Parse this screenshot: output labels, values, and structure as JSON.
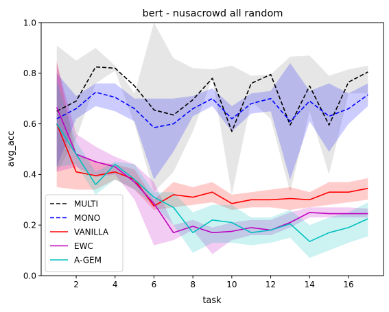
{
  "chart_data": {
    "type": "line",
    "title": "bert - nusacrowd all random",
    "xlabel": "task",
    "ylabel": "avg_acc",
    "xlim": [
      0.2,
      17.8
    ],
    "ylim": [
      0.0,
      1.0
    ],
    "xticks": [
      2,
      4,
      6,
      8,
      10,
      12,
      14,
      16
    ],
    "xtick_labels": [
      "2",
      "4",
      "6",
      "8",
      "10",
      "12",
      "14",
      "16"
    ],
    "yticks": [
      0.0,
      0.2,
      0.4,
      0.6,
      0.8,
      1.0
    ],
    "ytick_labels": [
      "0.0",
      "0.2",
      "0.4",
      "0.6",
      "0.8",
      "1.0"
    ],
    "grid": false,
    "legend_position": "lower-left",
    "x": [
      1,
      2,
      3,
      4,
      5,
      6,
      7,
      8,
      9,
      10,
      11,
      12,
      13,
      14,
      15,
      16,
      17
    ],
    "series": [
      {
        "name": "MULTI",
        "color": "#000000",
        "dash": "dashed",
        "band_color": "#808080",
        "values": [
          0.65,
          0.69,
          0.825,
          0.82,
          0.75,
          0.655,
          0.635,
          0.695,
          0.78,
          0.57,
          0.76,
          0.795,
          0.595,
          0.75,
          0.595,
          0.765,
          0.805
        ],
        "lower": [
          0.41,
          0.54,
          0.76,
          0.81,
          0.6,
          0.33,
          0.41,
          0.57,
          0.78,
          0.32,
          0.69,
          0.62,
          0.33,
          0.65,
          0.4,
          0.72,
          0.72
        ],
        "upper": [
          0.91,
          0.85,
          0.9,
          0.83,
          0.72,
          1.0,
          0.86,
          0.82,
          0.815,
          0.83,
          0.79,
          0.795,
          0.865,
          0.87,
          0.79,
          0.815,
          0.83
        ]
      },
      {
        "name": "MONO",
        "color": "#0000ff",
        "dash": "dashed",
        "band_color": "#0000ff",
        "values": [
          0.62,
          0.66,
          0.725,
          0.705,
          0.66,
          0.585,
          0.6,
          0.66,
          0.7,
          0.62,
          0.68,
          0.7,
          0.61,
          0.69,
          0.63,
          0.66,
          0.715
        ],
        "lower": [
          0.43,
          0.62,
          0.67,
          0.65,
          0.61,
          0.38,
          0.49,
          0.63,
          0.67,
          0.57,
          0.64,
          0.65,
          0.38,
          0.61,
          0.49,
          0.6,
          0.67
        ],
        "upper": [
          0.8,
          0.71,
          0.76,
          0.76,
          0.7,
          0.7,
          0.7,
          0.71,
          0.74,
          0.67,
          0.72,
          0.73,
          0.84,
          0.73,
          0.76,
          0.72,
          0.76
        ]
      },
      {
        "name": "VANILLA",
        "color": "#ff0000",
        "dash": "solid",
        "band_color": "#ff0000",
        "values": [
          0.6,
          0.41,
          0.395,
          0.41,
          0.38,
          0.275,
          0.32,
          0.31,
          0.33,
          0.285,
          0.3,
          0.3,
          0.305,
          0.3,
          0.33,
          0.33,
          0.345
        ],
        "lower": [
          0.35,
          0.34,
          0.34,
          0.38,
          0.34,
          0.26,
          0.27,
          0.28,
          0.29,
          0.26,
          0.27,
          0.27,
          0.26,
          0.27,
          0.28,
          0.29,
          0.3
        ],
        "upper": [
          0.85,
          0.48,
          0.45,
          0.44,
          0.42,
          0.3,
          0.37,
          0.35,
          0.37,
          0.32,
          0.33,
          0.34,
          0.35,
          0.33,
          0.37,
          0.37,
          0.385
        ]
      },
      {
        "name": "EWC",
        "color": "#bf00bf",
        "dash": "solid",
        "band_color": "#bf00bf",
        "values": [
          0.665,
          0.48,
          0.45,
          0.43,
          0.37,
          0.285,
          0.17,
          0.195,
          0.17,
          0.175,
          0.19,
          0.18,
          0.21,
          0.25,
          0.245,
          0.245,
          0.245
        ],
        "lower": [
          0.41,
          0.43,
          0.39,
          0.4,
          0.3,
          0.12,
          0.14,
          0.18,
          0.085,
          0.14,
          0.16,
          0.16,
          0.19,
          0.23,
          0.23,
          0.23,
          0.23
        ],
        "upper": [
          0.84,
          0.56,
          0.51,
          0.47,
          0.44,
          0.37,
          0.2,
          0.22,
          0.19,
          0.21,
          0.22,
          0.22,
          0.25,
          0.27,
          0.27,
          0.27,
          0.265
        ]
      },
      {
        "name": "A-GEM",
        "color": "#00bfbf",
        "dash": "solid",
        "band_color": "#00bfbf",
        "values": [
          0.6,
          0.48,
          0.36,
          0.44,
          0.38,
          0.31,
          0.27,
          0.17,
          0.22,
          0.21,
          0.17,
          0.18,
          0.205,
          0.135,
          0.17,
          0.19,
          0.225
        ],
        "lower": [
          0.43,
          0.44,
          0.32,
          0.38,
          0.34,
          0.28,
          0.2,
          0.09,
          0.13,
          0.13,
          0.12,
          0.13,
          0.15,
          0.07,
          0.1,
          0.13,
          0.155
        ],
        "upper": [
          0.77,
          0.53,
          0.41,
          0.45,
          0.44,
          0.33,
          0.33,
          0.25,
          0.28,
          0.28,
          0.23,
          0.23,
          0.26,
          0.2,
          0.23,
          0.25,
          0.29
        ]
      }
    ]
  }
}
